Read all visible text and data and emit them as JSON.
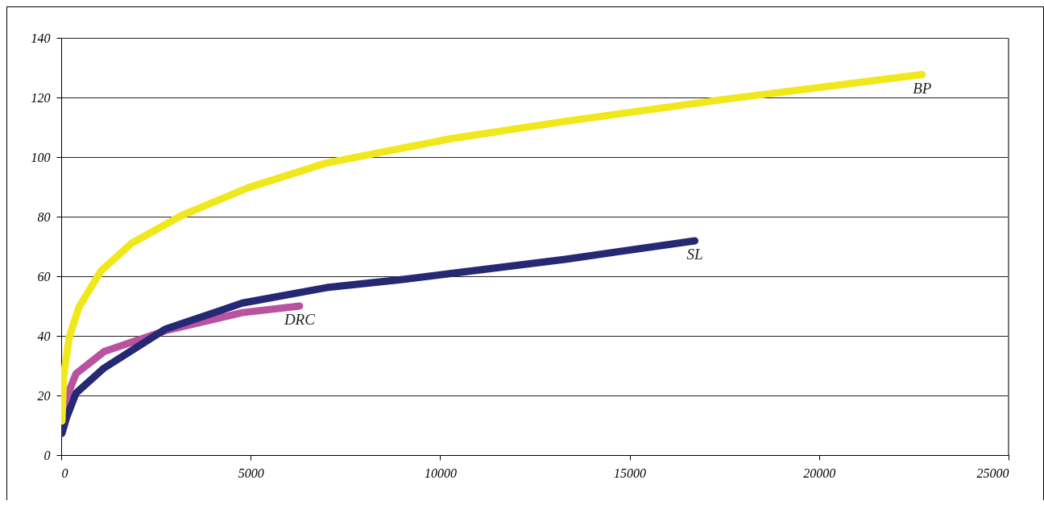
{
  "chart_data": {
    "type": "line",
    "xlim": [
      0,
      25000
    ],
    "xticks": [
      0,
      5000,
      10000,
      15000,
      20000,
      25000
    ],
    "ylim": [
      0,
      140
    ],
    "yticks": [
      0,
      20,
      40,
      60,
      80,
      100,
      120,
      140
    ],
    "grid": "y",
    "series": [
      {
        "name": "BP",
        "color": "#f0e81c",
        "x": [
          20,
          60,
          210,
          470,
          1050,
          1850,
          3180,
          4930,
          7000,
          9010,
          10210,
          13300,
          17580,
          22720
        ],
        "values": [
          11.4,
          26,
          39.5,
          49.7,
          61.8,
          71,
          80.4,
          89.7,
          98,
          103,
          106,
          112,
          119.5,
          127.7
        ]
      },
      {
        "name": "SL",
        "color": "#252872",
        "x": [
          20,
          136,
          390,
          1130,
          2740,
          4780,
          7000,
          9010,
          10210,
          13300,
          16720
        ],
        "values": [
          7.3,
          12.4,
          20.8,
          29.2,
          42.2,
          51,
          56.2,
          58.9,
          60.8,
          65.7,
          71.9
        ]
      },
      {
        "name": "DRC",
        "color": "#b9529f",
        "x": [
          0,
          100,
          390,
          1130,
          2740,
          4780,
          6290
        ],
        "values": [
          9.5,
          18,
          27.3,
          34.7,
          41.7,
          47.8,
          50
        ]
      }
    ]
  }
}
